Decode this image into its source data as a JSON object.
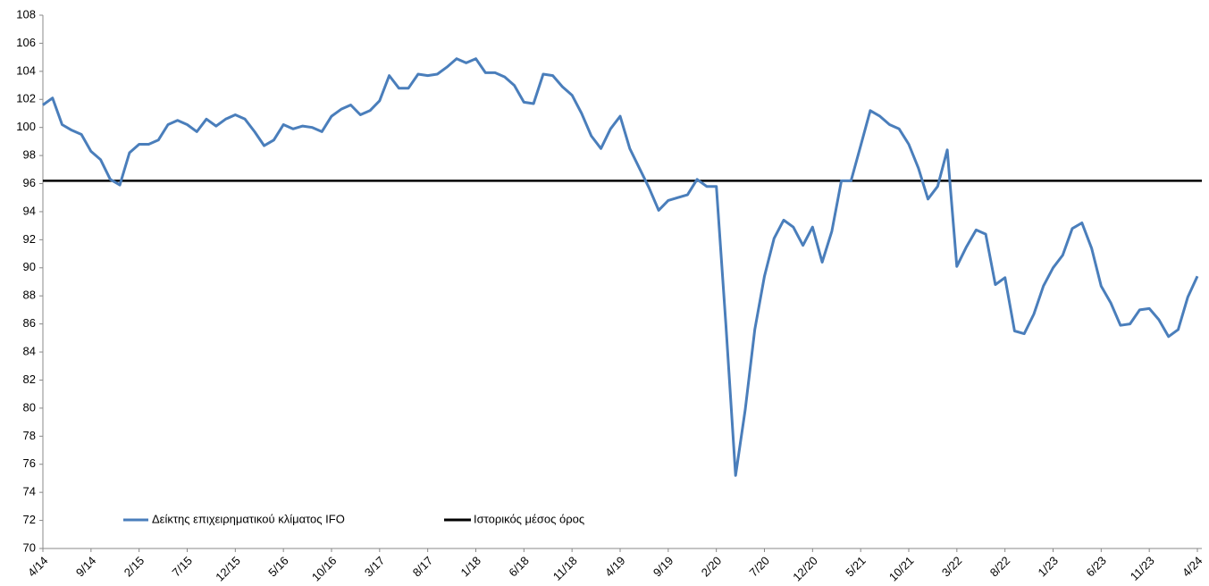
{
  "chart_data": {
    "type": "line",
    "categories": [
      "4/14",
      null,
      null,
      null,
      null,
      "9/14",
      null,
      null,
      null,
      null,
      "2/15",
      null,
      null,
      null,
      null,
      "7/15",
      null,
      null,
      null,
      null,
      "12/15",
      null,
      null,
      null,
      null,
      "5/16",
      null,
      null,
      null,
      null,
      "10/16",
      null,
      null,
      null,
      null,
      "3/17",
      null,
      null,
      null,
      null,
      "8/17",
      null,
      null,
      null,
      null,
      "1/18",
      null,
      null,
      null,
      null,
      "6/18",
      null,
      null,
      null,
      null,
      "11/18",
      null,
      null,
      null,
      null,
      "4/19",
      null,
      null,
      null,
      null,
      "9/19",
      null,
      null,
      null,
      null,
      "2/20",
      null,
      null,
      null,
      null,
      "7/20",
      null,
      null,
      null,
      null,
      "12/20",
      null,
      null,
      null,
      null,
      "5/21",
      null,
      null,
      null,
      null,
      "10/21",
      null,
      null,
      null,
      null,
      "3/22",
      null,
      null,
      null,
      null,
      "8/22",
      null,
      null,
      null,
      null,
      "1/23",
      null,
      null,
      null,
      null,
      "6/23",
      null,
      null,
      null,
      null,
      "11/23",
      null,
      null,
      null,
      null,
      "4/24"
    ],
    "series": [
      {
        "name": "Δείκτης επιχειρηματικού κλίματος IFO",
        "color": "#4a7ebb",
        "values": [
          101.6,
          102.1,
          100.2,
          99.8,
          99.5,
          98.3,
          97.7,
          96.3,
          95.9,
          98.2,
          98.8,
          98.8,
          99.1,
          100.2,
          100.5,
          100.2,
          99.7,
          100.6,
          100.1,
          100.6,
          100.9,
          100.6,
          99.7,
          98.7,
          99.1,
          100.2,
          99.9,
          100.1,
          100.0,
          99.7,
          100.8,
          101.3,
          101.6,
          100.9,
          101.2,
          101.9,
          103.7,
          102.8,
          102.8,
          103.8,
          103.7,
          103.8,
          104.3,
          104.9,
          104.6,
          104.9,
          103.9,
          103.9,
          103.6,
          103.0,
          101.8,
          101.7,
          103.8,
          103.7,
          102.9,
          102.3,
          101.0,
          99.4,
          98.5,
          99.9,
          100.8,
          98.5,
          97.1,
          95.7,
          94.1,
          94.8,
          95.0,
          95.2,
          96.3,
          95.8,
          95.8,
          85.9,
          75.2,
          79.9,
          85.6,
          89.4,
          92.1,
          93.4,
          92.9,
          91.6,
          92.9,
          90.4,
          92.6,
          96.2,
          96.2,
          98.7,
          101.2,
          100.8,
          100.2,
          99.9,
          98.8,
          97.1,
          94.9,
          95.8,
          98.4,
          90.1,
          91.5,
          92.7,
          92.4,
          88.8,
          89.3,
          85.5,
          85.3,
          86.7,
          88.7,
          90.0,
          90.9,
          92.8,
          93.2,
          91.4,
          88.7,
          87.5,
          85.9,
          86.0,
          87.0,
          87.1,
          86.3,
          85.1,
          85.6,
          87.9,
          89.4
        ]
      }
    ],
    "hline": {
      "name": "Ιστορικός μέσος όρος",
      "value": 96.2,
      "color": "#000000"
    },
    "ylim": [
      70,
      108
    ],
    "yticks": [
      70,
      72,
      74,
      76,
      78,
      80,
      82,
      84,
      86,
      88,
      90,
      92,
      94,
      96,
      98,
      100,
      102,
      104,
      106,
      108
    ],
    "legend": "bottom-left"
  }
}
